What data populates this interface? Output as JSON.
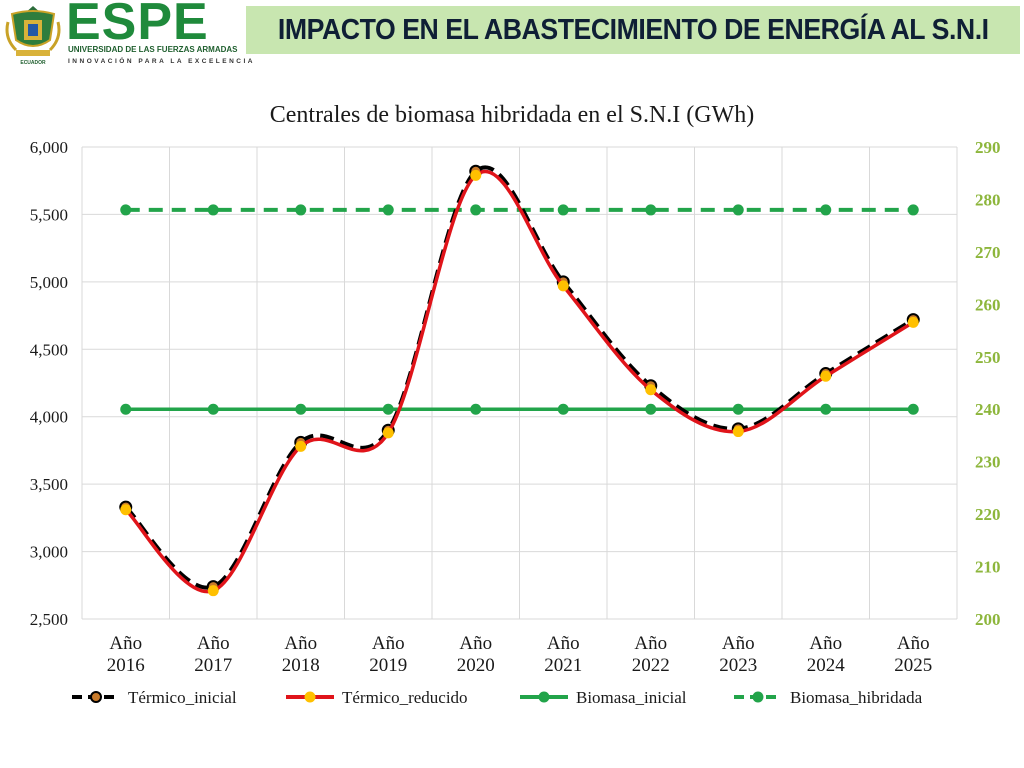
{
  "header": {
    "logo_text": "ESPE",
    "logo_sub1": "UNIVERSIDAD DE LAS FUERZAS ARMADAS",
    "logo_sub2": "INNOVACIÓN PARA LA EXCELENCIA",
    "crest_text": "ECUADOR",
    "slide_title": "IMPACTO EN EL ABASTECIMIENTO DE ENERGÍA AL S.N.I"
  },
  "colors": {
    "banner": "#c8e6b0",
    "termico_inicial": "#000000",
    "termico_reducido": "#e0141a",
    "biomasa": "#22a44a",
    "marker_reducido": "#ffc000",
    "right_axis_text": "#8db63c"
  },
  "chart_data": {
    "type": "line",
    "title": "Centrales de biomasa hibridada en el S.N.I (GWh)",
    "categories": [
      [
        "Año",
        "2016"
      ],
      [
        "Año",
        "2017"
      ],
      [
        "Año",
        "2018"
      ],
      [
        "Año",
        "2019"
      ],
      [
        "Año",
        "2020"
      ],
      [
        "Año",
        "2021"
      ],
      [
        "Año",
        "2022"
      ],
      [
        "Año",
        "2023"
      ],
      [
        "Año",
        "2024"
      ],
      [
        "Año",
        "2025"
      ]
    ],
    "y_left": {
      "min": 2500,
      "max": 6000,
      "ticks": [
        "2,500",
        "3,000",
        "3,500",
        "4,000",
        "4,500",
        "5,000",
        "5,500",
        "6,000"
      ],
      "tick_values": [
        2500,
        3000,
        3500,
        4000,
        4500,
        5000,
        5500,
        6000
      ]
    },
    "y_right": {
      "min": 200,
      "max": 290,
      "ticks": [
        "200",
        "210",
        "220",
        "230",
        "240",
        "250",
        "260",
        "270",
        "280",
        "290"
      ],
      "tick_values": [
        200,
        210,
        220,
        230,
        240,
        250,
        260,
        270,
        280,
        290
      ]
    },
    "grid": true,
    "legend_position": "bottom",
    "series": [
      {
        "name": "Térmico_inicial",
        "axis": "left",
        "style": "dashed-smooth",
        "color": "#000000",
        "marker": "#000000",
        "marker_fill": "#c87a2a",
        "values": [
          3330,
          2740,
          3810,
          3900,
          5820,
          5000,
          4230,
          3910,
          4320,
          4720
        ]
      },
      {
        "name": "Térmico_reducido",
        "axis": "left",
        "style": "solid-smooth",
        "color": "#e0141a",
        "marker": "#ffc000",
        "marker_fill": "#ffc000",
        "values": [
          3310,
          2710,
          3780,
          3880,
          5790,
          4970,
          4200,
          3890,
          4300,
          4700
        ]
      },
      {
        "name": "Biomasa_inicial",
        "axis": "right",
        "style": "solid",
        "color": "#22a44a",
        "marker": "#22a44a",
        "marker_fill": "#22a44a",
        "values": [
          240,
          240,
          240,
          240,
          240,
          240,
          240,
          240,
          240,
          240
        ]
      },
      {
        "name": "Biomasa_hibridada",
        "axis": "right",
        "style": "dashed",
        "color": "#22a44a",
        "marker": "#22a44a",
        "marker_fill": "#22a44a",
        "values": [
          278,
          278,
          278,
          278,
          278,
          278,
          278,
          278,
          278,
          278
        ]
      }
    ]
  }
}
